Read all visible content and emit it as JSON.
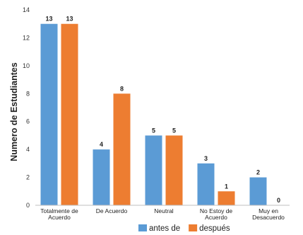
{
  "chart_data": {
    "type": "bar",
    "ylabel": "Numero de Estudiantes",
    "xlabel": "",
    "ylim": [
      0,
      14
    ],
    "yticks": [
      0,
      2,
      4,
      6,
      8,
      10,
      12,
      14
    ],
    "grid": false,
    "legend_position": "bottom",
    "categories": [
      [
        "Totalmente de",
        "Acuerdo"
      ],
      [
        "De Acuerdo"
      ],
      [
        "Neutral"
      ],
      [
        "No Estoy de",
        "Acuerdo"
      ],
      [
        "Muy en",
        "Desacuerdo"
      ]
    ],
    "series": [
      {
        "name": "antes de",
        "color": "#5b9bd5",
        "values": [
          13,
          4,
          5,
          3,
          2
        ]
      },
      {
        "name": "después",
        "color": "#ed7d31",
        "values": [
          13,
          8,
          5,
          1,
          0
        ]
      }
    ]
  }
}
